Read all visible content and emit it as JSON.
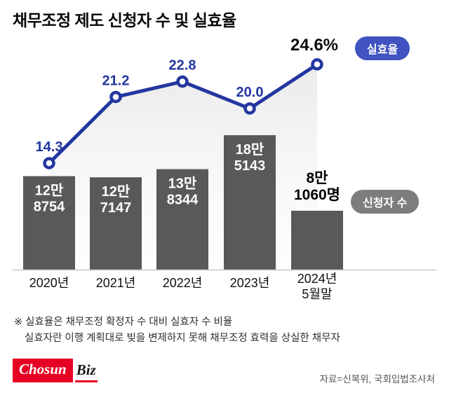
{
  "title": "채무조정 제도 신청자 수 및 실효율",
  "badges": {
    "rate": "실효율",
    "applicants": "신청자 수"
  },
  "footnotes": {
    "line1": "※ 실효율은 채무조정 확정자 수 대비 실효자 수 비율",
    "line2": "실효자란 이행 계획대로 빚을 변제하지 못해 채무조정 효력을 상실한 채무자"
  },
  "footer": {
    "logo_chosun": "Chosun",
    "logo_biz": "Biz",
    "source": "자료=신복위, 국회입법조사처"
  },
  "colors": {
    "line": "#2336a0",
    "bar": "#58595b",
    "rate_badge": "#4053c0",
    "applicants_badge": "#7d7d7d",
    "last_point_label": "#0b0b0b",
    "bar_label": "#ffffff",
    "axis": "#c9c9c9",
    "category": "#101010"
  },
  "chart_data": {
    "type": "bar",
    "title": "채무조정 제도 신청자 수 및 실효율",
    "categories": [
      "2020년",
      "2021년",
      "2022년",
      "2023년",
      "2024년\n5월말"
    ],
    "series": [
      {
        "name": "신청자 수",
        "type": "bar",
        "values": [
          128754,
          127147,
          138344,
          185143,
          81060
        ],
        "labels": [
          [
            "12만",
            "8754"
          ],
          [
            "12만",
            "7147"
          ],
          [
            "13만",
            "8344"
          ],
          [
            "18만",
            "5143"
          ],
          [
            "8만",
            "1060명"
          ]
        ]
      },
      {
        "name": "실효율",
        "type": "line",
        "values": [
          14.3,
          21.2,
          22.8,
          20.0,
          24.6
        ],
        "labels": [
          "14.3",
          "21.2",
          "22.8",
          "20.0",
          "24.6%"
        ]
      }
    ],
    "ylabel": "",
    "xlabel": "",
    "legend_position": "right-badges",
    "grid": false
  }
}
